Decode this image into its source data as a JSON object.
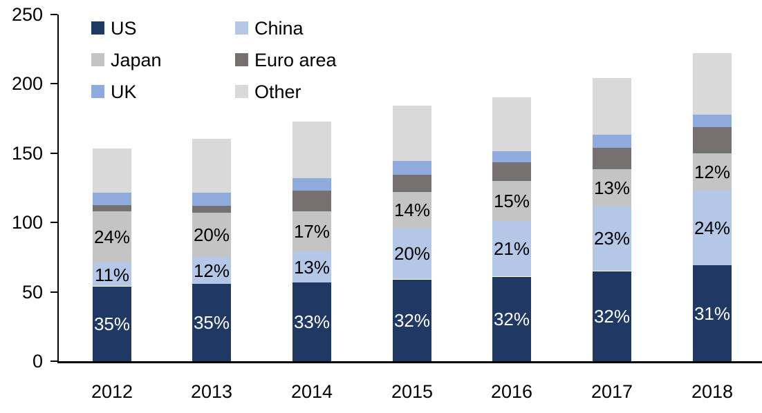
{
  "chart_data": {
    "type": "bar",
    "stacked": true,
    "title": "",
    "categories": [
      "2012",
      "2013",
      "2014",
      "2015",
      "2016",
      "2017",
      "2018"
    ],
    "y_axis": {
      "min": 0,
      "max": 250,
      "tick_step": 50,
      "tick_labels": [
        "0",
        "50",
        "100",
        "150",
        "200",
        "250"
      ]
    },
    "grid": false,
    "legend": {
      "position": "top-left",
      "columns": 2,
      "row_major_order": [
        "US",
        "China",
        "Japan",
        "Euro area",
        "UK",
        "Other"
      ]
    },
    "series": [
      {
        "name": "US",
        "color": "#1f3864",
        "values": [
          54,
          56,
          57,
          59,
          61,
          65,
          69
        ],
        "labels": [
          "35%",
          "35%",
          "33%",
          "32%",
          "32%",
          "32%",
          "31%"
        ],
        "label_color": "#ffffff"
      },
      {
        "name": "China",
        "color": "#b4c7e7",
        "values": [
          17,
          19,
          22,
          37,
          40,
          47,
          54
        ],
        "labels": [
          "11%",
          "12%",
          "13%",
          "20%",
          "21%",
          "23%",
          "24%"
        ],
        "label_color": "#000000"
      },
      {
        "name": "Japan",
        "color": "#c4c4c4",
        "values": [
          37,
          32,
          29,
          26,
          29,
          26.5,
          27
        ],
        "labels": [
          "24%",
          "20%",
          "17%",
          "14%",
          "15%",
          "13%",
          "12%"
        ],
        "label_color": "#000000"
      },
      {
        "name": "Euro area",
        "color": "#767171",
        "values": [
          4.5,
          5,
          15,
          12.5,
          13.5,
          15.5,
          19
        ],
        "labels": null,
        "label_color": null
      },
      {
        "name": "UK",
        "color": "#8faadc",
        "values": [
          9,
          9.5,
          9,
          10,
          8,
          9.5,
          9
        ],
        "labels": null,
        "label_color": null
      },
      {
        "name": "Other",
        "color": "#d9d9d9",
        "values": [
          32,
          39,
          41,
          40,
          39,
          40.5,
          44
        ],
        "labels": null,
        "label_color": null
      }
    ],
    "approx_totals": [
      153.5,
      160.5,
      173,
      184.5,
      190.5,
      204,
      222
    ]
  }
}
